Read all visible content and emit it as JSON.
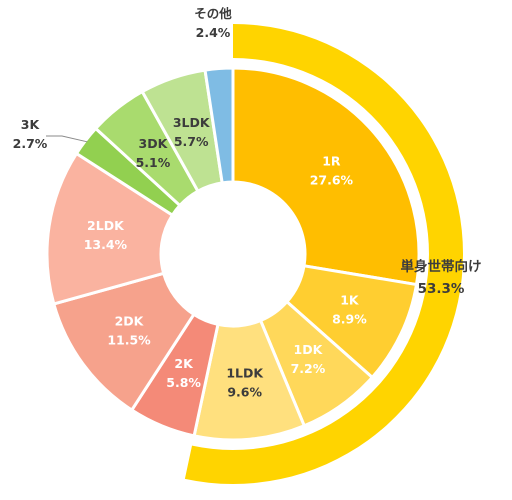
{
  "chart_data": {
    "type": "pie",
    "variant": "donut",
    "start": "top",
    "direction": "clockwise",
    "slices": [
      {
        "label": "1R",
        "value": 27.6,
        "display": "27.6%",
        "color": "#FFBE00",
        "text_color": "white"
      },
      {
        "label": "1K",
        "value": 8.9,
        "display": "8.9%",
        "color": "#FFCE30",
        "text_color": "white"
      },
      {
        "label": "1DK",
        "value": 7.2,
        "display": "7.2%",
        "color": "#FFD85A",
        "text_color": "white"
      },
      {
        "label": "1LDK",
        "value": 9.6,
        "display": "9.6%",
        "color": "#FFE07E",
        "text_color": "dark"
      },
      {
        "label": "2K",
        "value": 5.8,
        "display": "5.8%",
        "color": "#F48A78",
        "text_color": "white"
      },
      {
        "label": "2DK",
        "value": 11.5,
        "display": "11.5%",
        "color": "#F6A28C",
        "text_color": "white"
      },
      {
        "label": "2LDK",
        "value": 13.4,
        "display": "13.4%",
        "color": "#FAB3A0",
        "text_color": "white"
      },
      {
        "label": "3K",
        "value": 2.7,
        "display": "2.7%",
        "color": "#92D050",
        "text_color": "dark",
        "outside": true
      },
      {
        "label": "3DK",
        "value": 5.1,
        "display": "5.1%",
        "color": "#A9DB6E",
        "text_color": "dark"
      },
      {
        "label": "3LDK",
        "value": 5.7,
        "display": "5.7%",
        "color": "#BEE292",
        "text_color": "dark"
      },
      {
        "label": "その他",
        "value": 2.4,
        "display": "2.4%",
        "color": "#7FBCE4",
        "text_color": "dark",
        "outside": true
      }
    ],
    "outer_arc": {
      "label": "単身世帯向け",
      "value": 53.3,
      "display": "53.3%",
      "color": "#FFD400"
    }
  }
}
